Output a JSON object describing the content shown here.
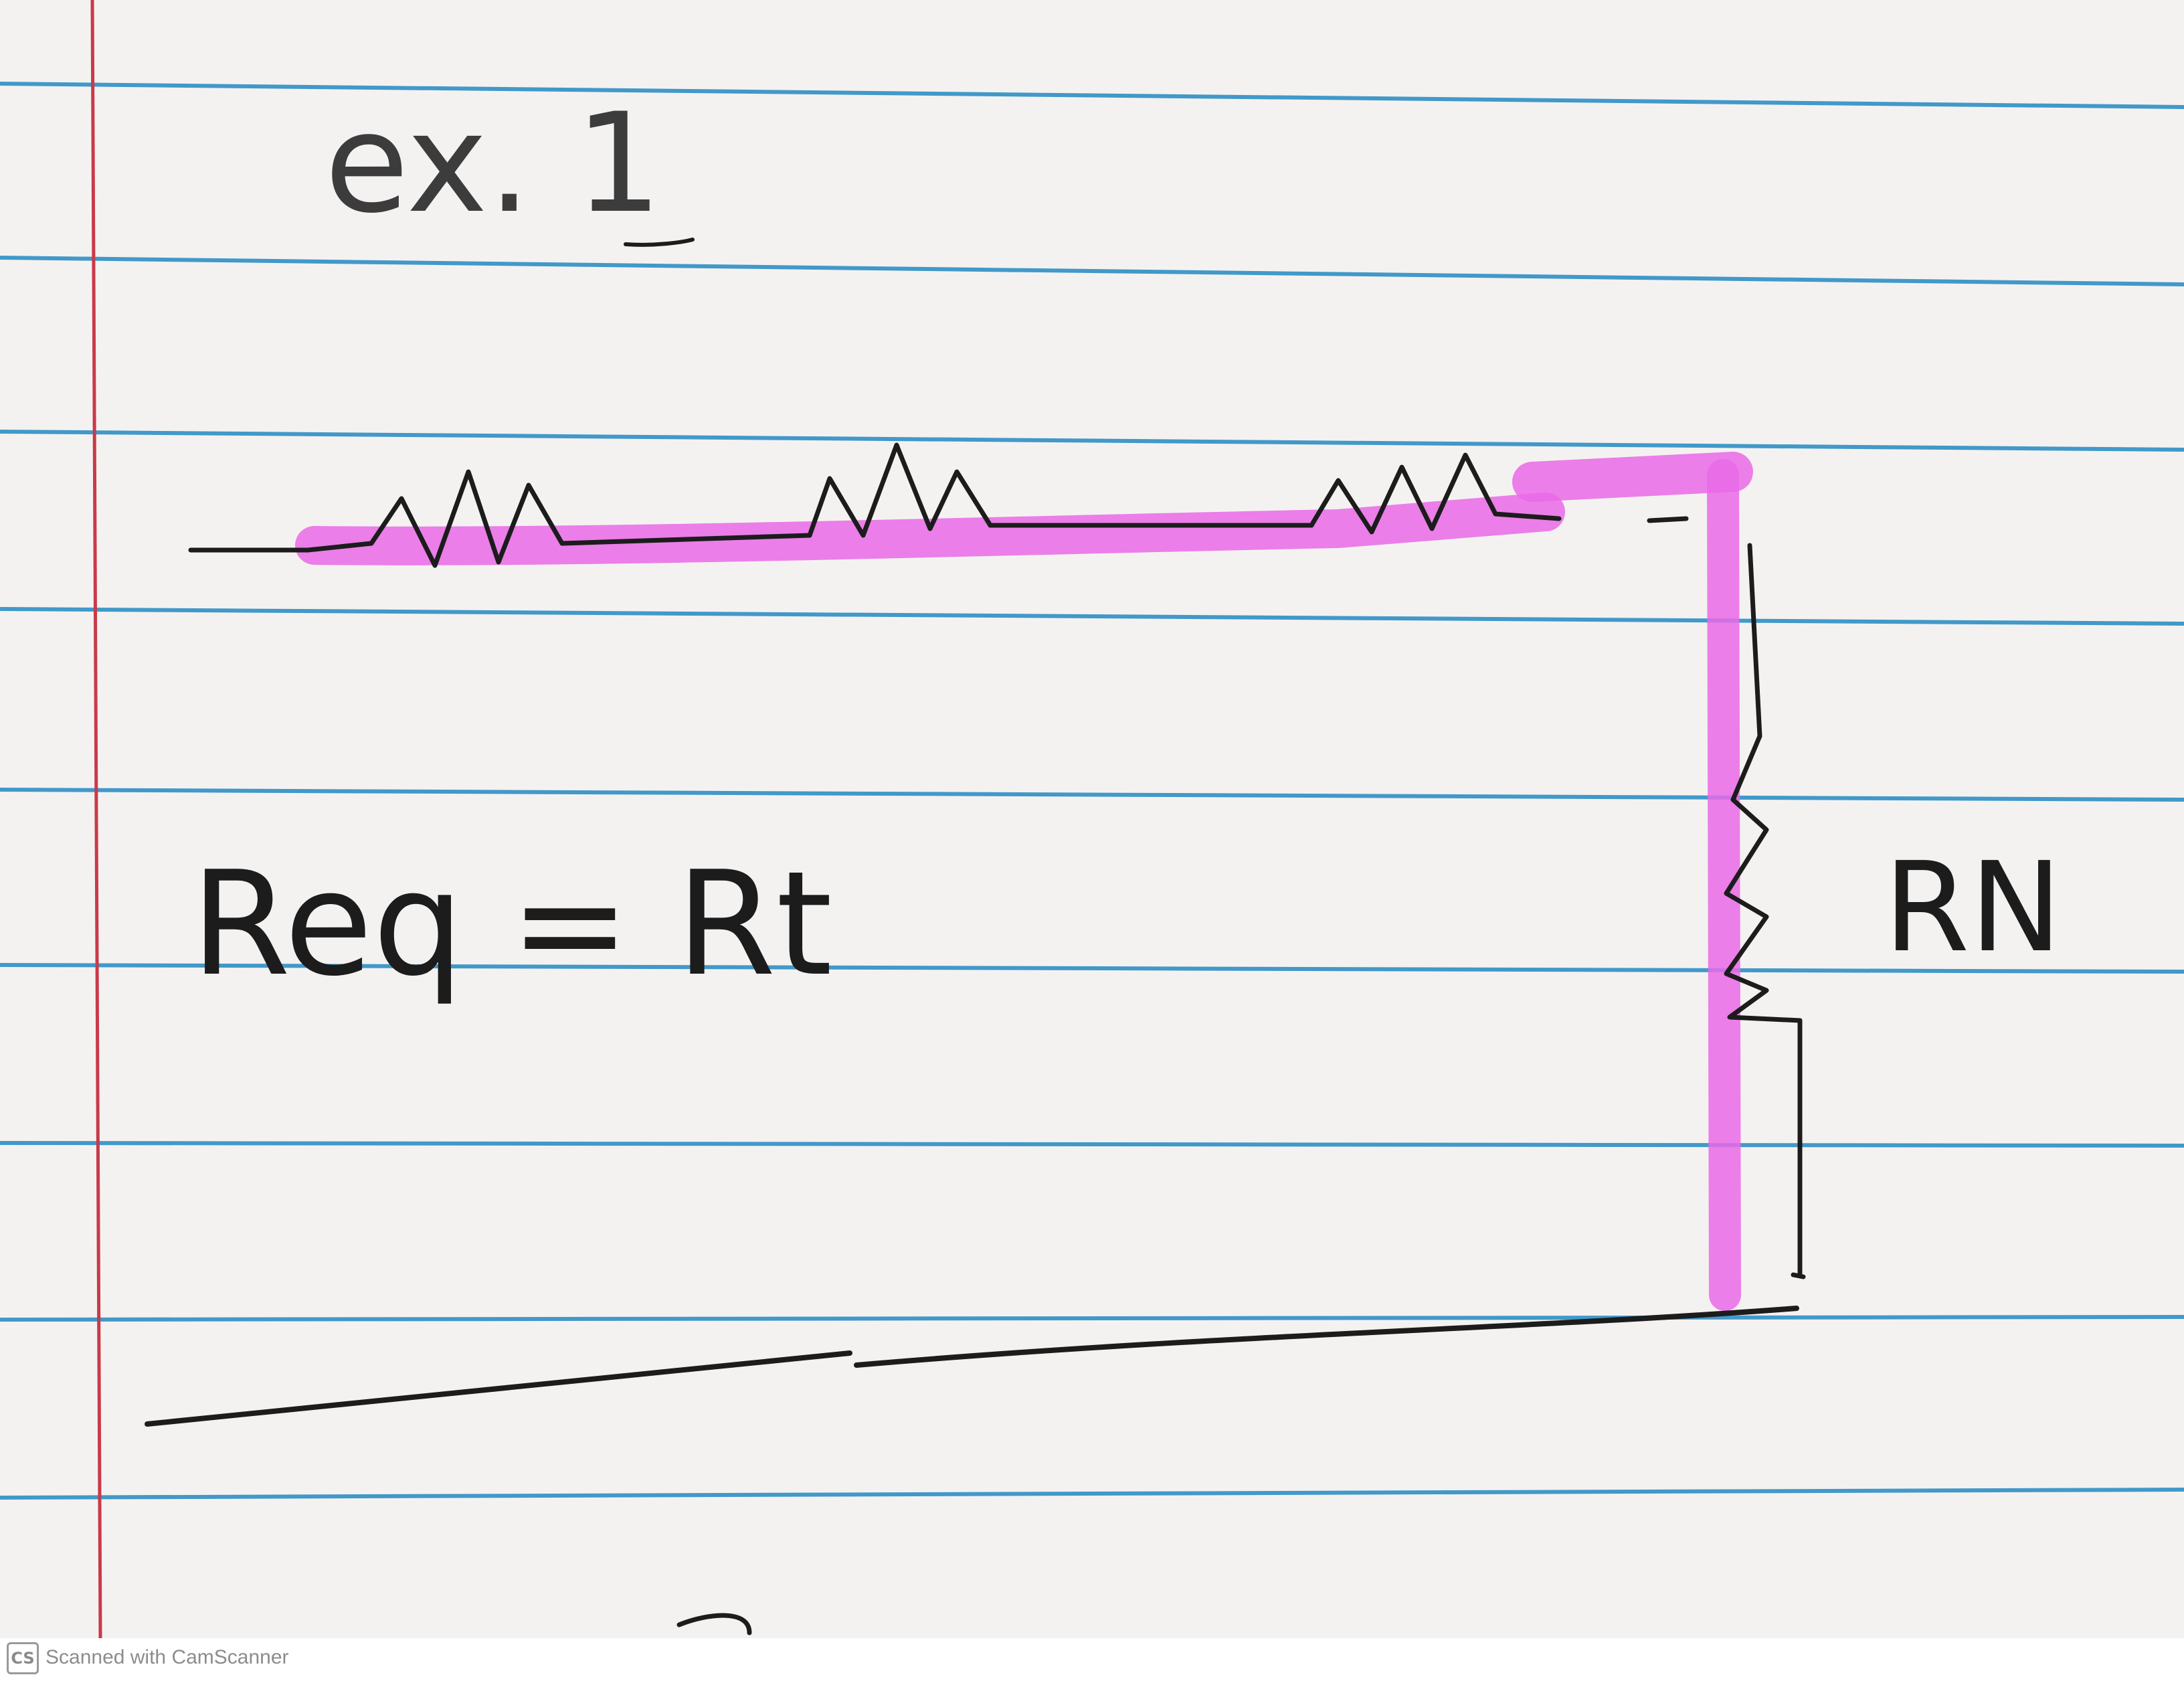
{
  "note": {
    "heading": "ex. 1",
    "equation": "Req = Rt",
    "resistor_label": "RN"
  },
  "colors": {
    "paper": "#f4f2f1",
    "rule_lines": "#2d8fc4",
    "margin_line": "#c83a4a",
    "ink": "#1c1c1c",
    "highlighter": "#e96ae6"
  },
  "footer": {
    "logo": "CS",
    "text": "Scanned with CamScanner"
  }
}
